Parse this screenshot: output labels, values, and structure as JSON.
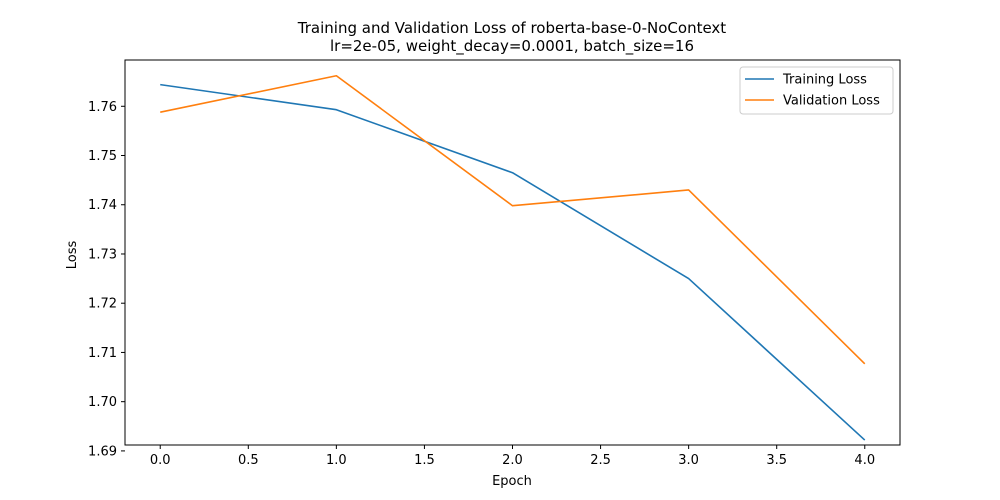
{
  "chart_data": {
    "type": "line",
    "title": "Training and Validation Loss of roberta-base-0-NoContext",
    "subtitle": "lr=2e-05, weight_decay=0.0001, batch_size=16",
    "xlabel": "Epoch",
    "ylabel": "Loss",
    "x": [
      0,
      1,
      2,
      3,
      4
    ],
    "xlim": [
      -0.2,
      4.2
    ],
    "ylim": [
      1.6912,
      1.7694
    ],
    "xticks": [
      "0.0",
      "0.5",
      "1.0",
      "1.5",
      "2.0",
      "2.5",
      "3.0",
      "3.5",
      "4.0"
    ],
    "xtick_values": [
      0,
      0.5,
      1,
      1.5,
      2,
      2.5,
      3,
      3.5,
      4
    ],
    "yticks": [
      "1.69",
      "1.70",
      "1.71",
      "1.72",
      "1.73",
      "1.74",
      "1.75",
      "1.76"
    ],
    "ytick_values": [
      1.69,
      1.7,
      1.71,
      1.72,
      1.73,
      1.74,
      1.75,
      1.76
    ],
    "grid": false,
    "legend_position": "top-right",
    "series": [
      {
        "name": "Training Loss",
        "color": "#1f77b4",
        "values": [
          1.7644,
          1.7593,
          1.7465,
          1.725,
          1.6922
        ]
      },
      {
        "name": "Validation Loss",
        "color": "#ff7f0e",
        "values": [
          1.7588,
          1.7662,
          1.7398,
          1.743,
          1.7077
        ]
      }
    ]
  }
}
